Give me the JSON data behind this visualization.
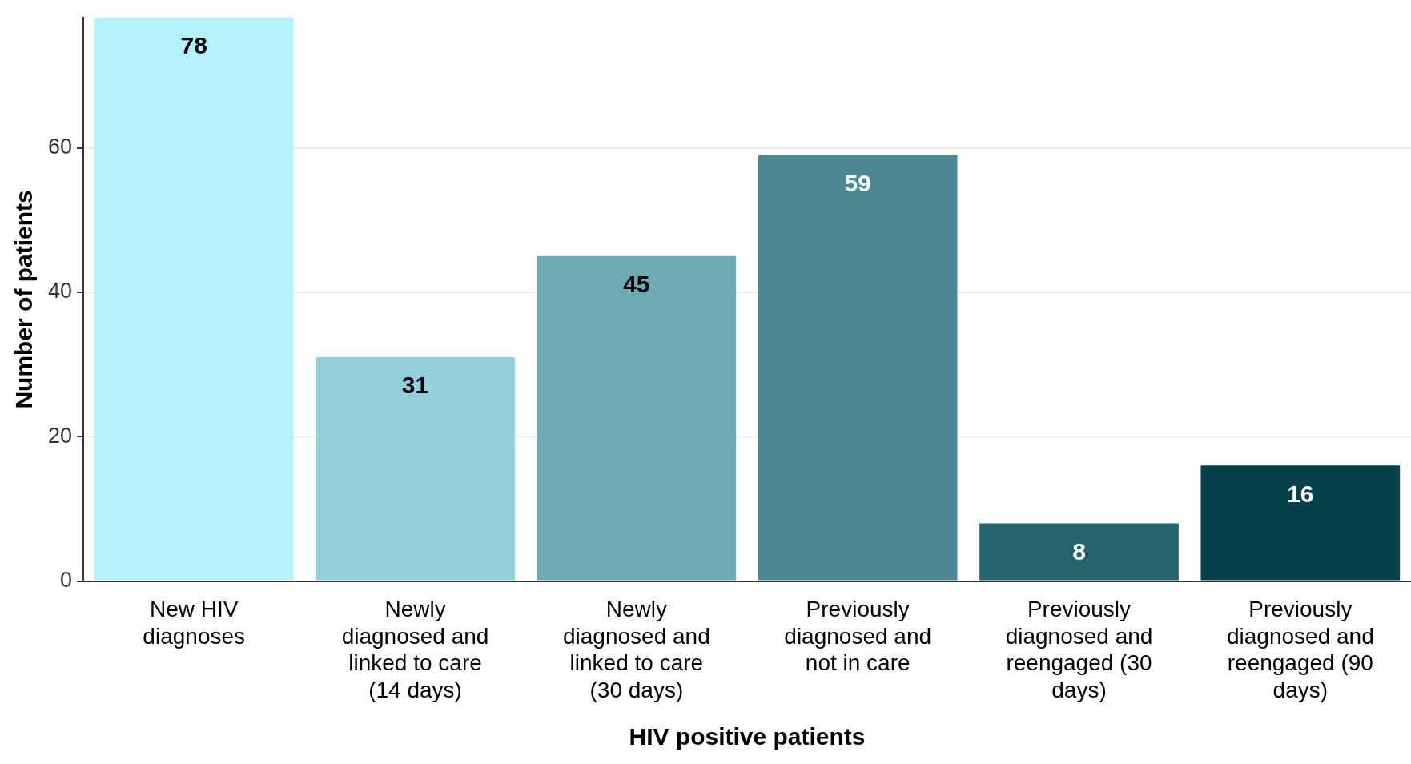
{
  "chart_data": {
    "type": "bar",
    "xlabel": "HIV positive patients",
    "ylabel": "Number of patients",
    "categories": [
      "New HIV diagnoses",
      "Newly diagnosed and linked to care (14 days)",
      "Newly diagnosed and linked to care (30 days)",
      "Previously diagnosed and not in care",
      "Previously diagnosed and reengaged (30 days)",
      "Previously diagnosed and reengaged (90 days)"
    ],
    "values": [
      78,
      31,
      45,
      59,
      8,
      16
    ],
    "colors": [
      "#b3f2fb",
      "#92d0db",
      "#6cabb4",
      "#4a8892",
      "#24646d",
      "#05404b"
    ],
    "ylim": [
      0,
      78
    ],
    "yticks": [
      0,
      20,
      40,
      60
    ],
    "grid": "y",
    "data_labels": true,
    "legend": false
  }
}
